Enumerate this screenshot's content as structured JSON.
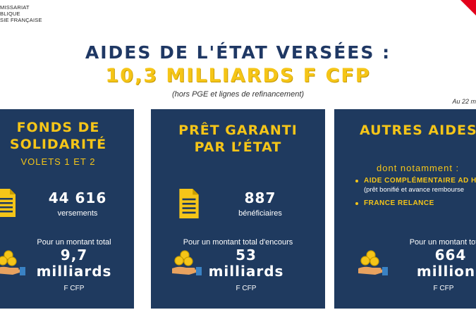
{
  "header": {
    "logo_line1": "MISSARIAT",
    "logo_line2": "BLIQUE",
    "logo_line3": "SIE FRANÇAISE"
  },
  "title": {
    "line1": "AIDES DE L'ÉTAT VERSÉES :",
    "line2": "10,3 MILLIARDS F CFP",
    "subtitle": "(hors PGE et lignes de refinancement)",
    "date_note": "Au 22 m"
  },
  "cards": [
    {
      "title_line1": "FONDS DE",
      "title_line2": "SOLIDARITÉ",
      "subtitle": "VOLETS 1 ET 2",
      "stat_value": "44 616",
      "stat_label": "versements",
      "amount_intro": "Pour un montant total",
      "amount_value_line1": "9,7",
      "amount_value_line2": "milliards",
      "amount_unit": "F CFP"
    },
    {
      "title_line1": "PRÊT GARANTI",
      "title_line2": "PAR L’ÉTAT",
      "stat_value": "887",
      "stat_label": "bénéficiaires",
      "amount_intro": "Pour un montant total d'encours",
      "amount_value_line1": "53",
      "amount_value_line2": "milliards",
      "amount_unit": "F CFP"
    },
    {
      "title_line1": "AUTRES AIDES",
      "notamment": "dont notamment :",
      "bullets": [
        {
          "text": "AIDE COMPLÉMENTAIRE AD H",
          "note": "(prêt bonifié et avance rembourse"
        },
        {
          "text": "FRANCE RELANCE"
        }
      ],
      "amount_intro": "Pour un montant tot",
      "amount_value_line1": "664",
      "amount_value_line2": "millions",
      "amount_unit": "F CFP"
    }
  ],
  "colors": {
    "navy": "#1f3a5f",
    "title_blue": "#1f3864",
    "gold": "#f5c518",
    "red_corner": "#e3001b"
  }
}
